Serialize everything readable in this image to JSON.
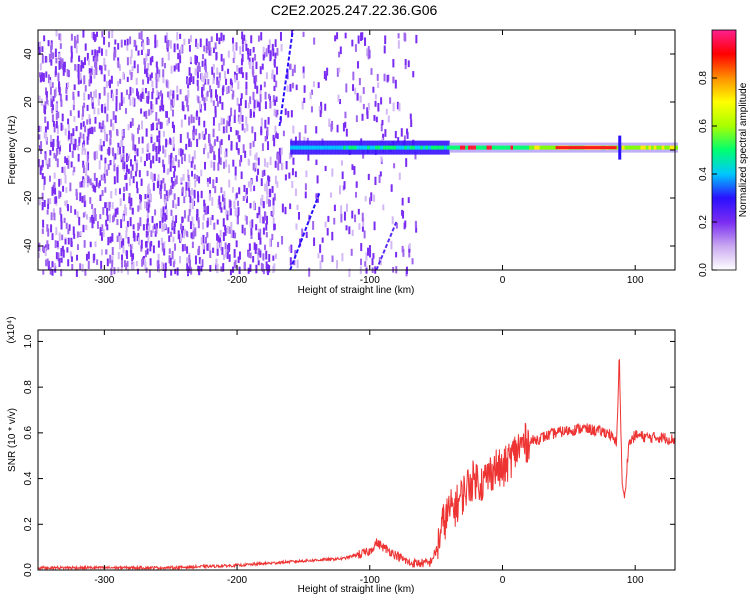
{
  "page_title": "C2E2.2025.247.22.36.G06",
  "chart_data": [
    {
      "type": "heatmap",
      "xlabel": "Height of straight line (km)",
      "ylabel": "Frequency (Hz)",
      "xlim": [
        -350,
        130
      ],
      "ylim": [
        -50,
        50
      ],
      "xticks": [
        -300,
        -200,
        -100,
        0,
        100
      ],
      "yticks": [
        -40,
        -20,
        0,
        20,
        40
      ],
      "colorbar": {
        "label": "Normalized spectral amplitude",
        "range": [
          0,
          1
        ],
        "ticks": [
          "0.0",
          "0.2",
          "0.4",
          "0.6",
          "0.8"
        ],
        "colors": [
          "#ffffff",
          "#c9a8f0",
          "#7a2cf2",
          "#2a10ff",
          "#00c8ff",
          "#00ff70",
          "#a8ff00",
          "#ffff00",
          "#ff9000",
          "#ff0000",
          "#ff2090"
        ]
      },
      "features": {
        "noise_region_km": [
          -350,
          -65
        ],
        "signal_line_freq_hz": 1,
        "signal_start_km": -160,
        "spike_km": 88
      }
    },
    {
      "type": "line",
      "xlabel": "Height of straight line (km)",
      "ylabel": "SNR (10 * v/v)",
      "y_multiplier": "(x10⁴)",
      "xlim": [
        -350,
        130
      ],
      "ylim": [
        0,
        1.05
      ],
      "xticks": [
        -300,
        -200,
        -100,
        0,
        100
      ],
      "yticks": [
        "0.0",
        "0.2",
        "0.4",
        "0.6",
        "0.8",
        "1.0"
      ],
      "series": [
        {
          "name": "SNR",
          "color": "#ee3333",
          "x": [
            -350,
            -300,
            -250,
            -200,
            -150,
            -120,
            -100,
            -95,
            -90,
            -70,
            -55,
            -50,
            -45,
            -40,
            -35,
            -30,
            -25,
            -20,
            -15,
            -10,
            -5,
            0,
            5,
            10,
            15,
            20,
            25,
            30,
            40,
            50,
            60,
            70,
            80,
            86,
            88,
            90,
            92,
            95,
            100,
            110,
            120,
            130
          ],
          "values": [
            0.01,
            0.01,
            0.01,
            0.02,
            0.04,
            0.05,
            0.08,
            0.12,
            0.1,
            0.03,
            0.03,
            0.08,
            0.2,
            0.26,
            0.28,
            0.33,
            0.38,
            0.4,
            0.38,
            0.42,
            0.45,
            0.43,
            0.48,
            0.52,
            0.55,
            0.56,
            0.57,
            0.58,
            0.6,
            0.61,
            0.62,
            0.61,
            0.6,
            0.55,
            0.95,
            0.4,
            0.3,
            0.55,
            0.59,
            0.58,
            0.58,
            0.57
          ]
        }
      ]
    }
  ]
}
